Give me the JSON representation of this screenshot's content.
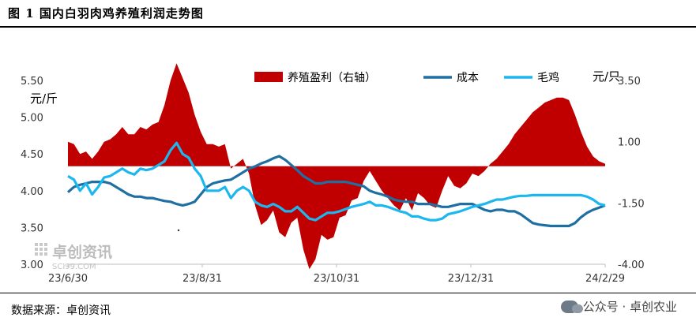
{
  "figure_title": "图 1  国内白羽肉鸡养殖利润走势图",
  "source": "数据来源：卓创资讯",
  "wechat": {
    "text": "公众号 · 卓创农业",
    "icon": "wechat-icon"
  },
  "watermark": {
    "text": "卓创资讯",
    "sub": "SCI99.COM"
  },
  "chart_data": {
    "type": "combo",
    "x_ticks": [
      "23/6/30",
      "23/8/31",
      "23/10/31",
      "23/12/31",
      "24/2/29"
    ],
    "left_axis": {
      "unit": "元/斤",
      "min": 3.0,
      "max": 5.5,
      "ticks": [
        "5.50",
        "5.00",
        "4.50",
        "4.00",
        "3.50",
        "3.00"
      ]
    },
    "right_axis": {
      "unit": "元/只",
      "min": -4.0,
      "max": 3.5,
      "ticks": [
        "3.50",
        "1.00",
        "-1.50",
        "-4.00"
      ]
    },
    "colors": {
      "profit": "#c00000",
      "cost": "#1f6fa3",
      "broiler": "#1cb7ee"
    },
    "series": [
      {
        "name": "养殖盈利（右轴）",
        "kind": "area",
        "axis": "right",
        "values": [
          1.0,
          0.9,
          0.5,
          0.6,
          0.3,
          0.6,
          1.0,
          1.1,
          1.3,
          1.6,
          1.3,
          1.3,
          1.6,
          1.5,
          1.7,
          1.8,
          2.5,
          3.5,
          4.2,
          3.6,
          3.0,
          2.1,
          1.4,
          0.9,
          0.9,
          0.8,
          0.9,
          -0.1,
          0.1,
          0.3,
          -0.3,
          -1.6,
          -2.4,
          -2.2,
          -1.8,
          -2.7,
          -2.9,
          -2.3,
          -2.1,
          -3.4,
          -4.2,
          -3.8,
          -2.8,
          -3.0,
          -2.9,
          -2.1,
          -2.0,
          -1.4,
          -1.3,
          -0.6,
          -0.2,
          -0.6,
          -1.0,
          -1.3,
          -1.6,
          -1.8,
          -1.3,
          -1.8,
          -1.1,
          -1.3,
          -1.6,
          -1.7,
          -1.0,
          -0.4,
          -0.8,
          -0.9,
          -0.7,
          -0.3,
          -0.4,
          -0.2,
          0.1,
          0.3,
          0.6,
          0.9,
          1.3,
          1.6,
          1.9,
          2.2,
          2.4,
          2.6,
          2.7,
          2.8,
          2.8,
          2.7,
          2.1,
          1.4,
          0.8,
          0.4,
          0.2,
          0.1
        ]
      },
      {
        "name": "成本",
        "kind": "line",
        "axis": "left",
        "values": [
          3.98,
          4.05,
          4.08,
          4.1,
          4.12,
          4.12,
          4.12,
          4.1,
          4.05,
          4.0,
          3.95,
          3.92,
          3.92,
          3.9,
          3.9,
          3.88,
          3.86,
          3.85,
          3.82,
          3.8,
          3.82,
          3.85,
          3.95,
          4.05,
          4.1,
          4.12,
          4.14,
          4.15,
          4.2,
          4.25,
          4.3,
          4.33,
          4.37,
          4.4,
          4.44,
          4.47,
          4.42,
          4.35,
          4.28,
          4.2,
          4.15,
          4.1,
          4.1,
          4.12,
          4.12,
          4.12,
          4.12,
          4.1,
          4.08,
          4.06,
          4.0,
          3.97,
          3.95,
          3.92,
          3.88,
          3.86,
          3.85,
          3.85,
          3.82,
          3.82,
          3.82,
          3.8,
          3.78,
          3.78,
          3.8,
          3.82,
          3.82,
          3.82,
          3.78,
          3.74,
          3.72,
          3.74,
          3.74,
          3.72,
          3.72,
          3.68,
          3.62,
          3.56,
          3.54,
          3.53,
          3.52,
          3.52,
          3.52,
          3.52,
          3.56,
          3.64,
          3.7,
          3.74,
          3.77,
          3.8
        ]
      },
      {
        "name": "毛鸡",
        "kind": "line",
        "axis": "left",
        "values": [
          4.2,
          4.15,
          4.0,
          4.1,
          3.95,
          4.05,
          4.18,
          4.2,
          4.25,
          4.3,
          4.25,
          4.22,
          4.3,
          4.28,
          4.3,
          4.35,
          4.4,
          4.55,
          4.65,
          4.5,
          4.45,
          4.3,
          4.2,
          4.0,
          4.0,
          4.0,
          4.05,
          3.9,
          4.0,
          4.05,
          4.0,
          3.85,
          3.8,
          3.78,
          3.82,
          3.78,
          3.72,
          3.72,
          3.78,
          3.7,
          3.62,
          3.6,
          3.65,
          3.7,
          3.7,
          3.72,
          3.75,
          3.78,
          3.8,
          3.82,
          3.85,
          3.8,
          3.8,
          3.78,
          3.75,
          3.72,
          3.7,
          3.65,
          3.65,
          3.62,
          3.6,
          3.6,
          3.62,
          3.68,
          3.7,
          3.72,
          3.75,
          3.78,
          3.8,
          3.82,
          3.85,
          3.88,
          3.88,
          3.9,
          3.92,
          3.93,
          3.93,
          3.94,
          3.94,
          3.94,
          3.94,
          3.94,
          3.94,
          3.94,
          3.94,
          3.94,
          3.92,
          3.88,
          3.82,
          3.8
        ]
      }
    ],
    "grid": false,
    "legend_position": "top"
  }
}
